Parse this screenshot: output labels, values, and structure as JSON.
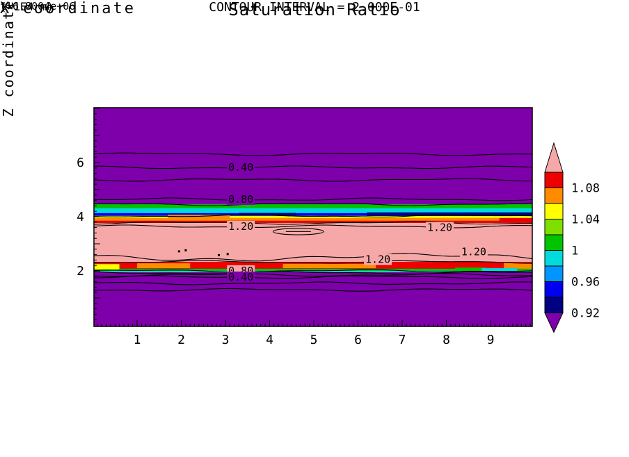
{
  "chart_data": {
    "type": "contour",
    "title": "Saturation Ratio",
    "xlabel": "X coordinate",
    "ylabel": "Z coordinate",
    "x_unit": "(×1E4 m)",
    "y_unit": "(×1E4 m)",
    "time": "t=6.8004e+06",
    "contour_interval": 0.2,
    "contour_interval_label": "CONTOUR INTERVAL = 2.000E-01",
    "x_ticks": [
      1,
      2,
      3,
      4,
      5,
      6,
      7,
      8,
      9
    ],
    "y_ticks": [
      2,
      4,
      6
    ],
    "x_range": [
      0,
      9.94
    ],
    "y_range": [
      0,
      8.03
    ],
    "colors": {
      "background": "#7D00AA",
      "pink": "#F6A8A8"
    },
    "bands": [
      {
        "z": [
          4.31,
          4.46
        ],
        "color": "#00C400"
      },
      {
        "z": [
          4.13,
          4.31
        ],
        "color": "#00DCDC"
      },
      {
        "z": [
          4.03,
          4.13
        ],
        "color": "#0000F0"
      },
      {
        "z": [
          3.95,
          4.03
        ],
        "color": "#FFFF00"
      },
      {
        "z": [
          3.85,
          3.95
        ],
        "color": "#FF8C00"
      },
      {
        "z": [
          3.77,
          3.85
        ],
        "color": "#EE0000"
      },
      {
        "z": [
          2.33,
          3.77
        ],
        "color": "#F6A8A8"
      },
      {
        "z": [
          2.08,
          2.33
        ],
        "color": "#EE0000"
      },
      {
        "z": [
          2.0,
          2.08
        ],
        "color": "#00C400"
      },
      {
        "z": [
          1.95,
          2.0
        ],
        "color": "#00DCDC"
      }
    ],
    "band_patches": [
      {
        "x": [
          6.2,
          9.94
        ],
        "z": [
          4.03,
          4.16
        ],
        "color": "#000080"
      },
      {
        "x": [
          3.3,
          4.6
        ],
        "z": [
          4.05,
          4.14
        ],
        "color": "#000080"
      },
      {
        "x": [
          1.7,
          3.1
        ],
        "z": [
          3.95,
          4.07
        ],
        "color": "#FF8C00"
      },
      {
        "x": [
          9.2,
          9.94
        ],
        "z": [
          3.8,
          3.95
        ],
        "color": "#EE0000"
      },
      {
        "x": [
          0,
          0.6
        ],
        "z": [
          2.05,
          2.25
        ],
        "color": "#FFFF00"
      },
      {
        "x": [
          1.0,
          2.2
        ],
        "z": [
          2.1,
          2.28
        ],
        "color": "#FF8C00"
      },
      {
        "x": [
          4.3,
          6.4
        ],
        "z": [
          2.1,
          2.26
        ],
        "color": "#FF8C00"
      },
      {
        "x": [
          9.3,
          9.94
        ],
        "z": [
          2.08,
          2.3
        ],
        "color": "#FF8C00"
      },
      {
        "x": [
          8.2,
          8.9
        ],
        "z": [
          2.02,
          2.12
        ],
        "color": "#00C400"
      },
      {
        "x": [
          8.8,
          9.6
        ],
        "z": [
          1.98,
          2.1
        ],
        "color": "#00DCDC"
      }
    ],
    "contour_lines": [
      {
        "z": 6.31
      },
      {
        "z": 5.82
      },
      {
        "z": 5.36
      },
      {
        "z": 4.64
      },
      {
        "z": 4.46
      },
      {
        "z": 4.03
      },
      {
        "z": 3.77
      },
      {
        "z": 3.64
      },
      {
        "z": 2.5,
        "amp": 0.1,
        "freq": 0.7
      },
      {
        "z": 2.33
      },
      {
        "z": 2.0
      },
      {
        "z": 1.93
      },
      {
        "z": 1.85
      },
      {
        "z": 1.77
      },
      {
        "z": 1.54
      },
      {
        "z": 1.3
      }
    ],
    "loops": [
      {
        "u": 4.65,
        "z": 3.45,
        "ru": 0.57,
        "rz": 0.12
      }
    ],
    "dots": [
      [
        1.95,
        2.72
      ],
      [
        2.1,
        2.76
      ],
      [
        2.85,
        2.58
      ],
      [
        3.05,
        2.62
      ]
    ],
    "contour_labels": [
      {
        "text": "0.40",
        "u": 3.35,
        "z": 5.82,
        "bg": "#7D00AA"
      },
      {
        "text": "0.80",
        "u": 3.35,
        "z": 4.64,
        "bg": "#7D00AA"
      },
      {
        "text": "1.20",
        "u": 3.35,
        "z": 3.64,
        "bg": "#F6A8A8"
      },
      {
        "text": "1.20",
        "u": 7.85,
        "z": 3.6,
        "bg": "#F6A8A8"
      },
      {
        "text": "1.20",
        "u": 6.45,
        "z": 2.42,
        "bg": "#F6A8A8"
      },
      {
        "text": "1.20",
        "u": 8.62,
        "z": 2.7,
        "bg": "#F6A8A8"
      },
      {
        "text": "0.80",
        "u": 3.35,
        "z": 2.0,
        "bg": "#F6A8A8"
      },
      {
        "text": "0.40",
        "u": 3.35,
        "z": 1.77,
        "bg": "#7D00AA"
      }
    ],
    "colorbar": {
      "labels": [
        "1.08",
        "1.04",
        "1",
        "0.96",
        "0.92"
      ],
      "segment_colors": [
        "#EE0000",
        "#FF8C00",
        "#FFFF00",
        "#7FE000",
        "#00C400",
        "#00DCDC",
        "#0096FF",
        "#0000F0",
        "#000080"
      ],
      "segment_values": [
        [
          1.08,
          1.1
        ],
        [
          1.06,
          1.08
        ],
        [
          1.04,
          1.06
        ],
        [
          1.02,
          1.04
        ],
        [
          1.0,
          1.02
        ],
        [
          0.98,
          1.0
        ],
        [
          0.96,
          0.98
        ],
        [
          0.94,
          0.96
        ],
        [
          0.92,
          0.94
        ]
      ],
      "above_value": 1.1,
      "below_value": 0.92,
      "above_color": "#F6A8A8",
      "below_color": "#7D00AA"
    }
  }
}
